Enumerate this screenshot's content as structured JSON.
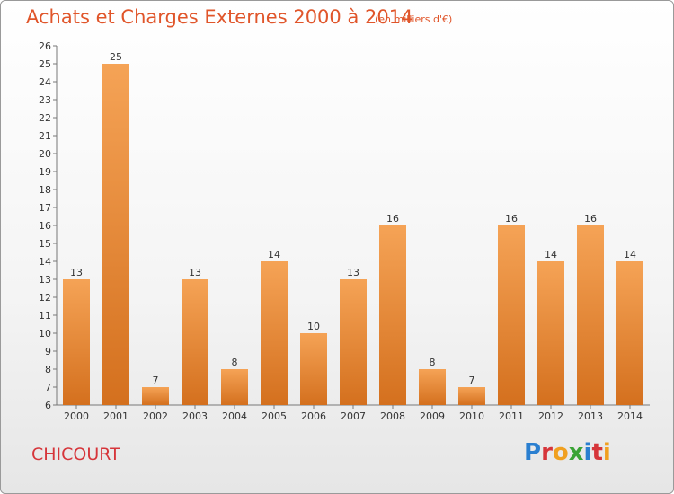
{
  "header": {
    "title": "Achats et Charges Externes 2000 à 2014",
    "unit": "(en milliers d'€)"
  },
  "footer": {
    "city": "CHICOURT",
    "logo": "Proxiti",
    "logo_colors": [
      "#2a7fd0",
      "#d6353a",
      "#f0a020",
      "#3aa335",
      "#2a7fd0",
      "#d6353a",
      "#f0a020"
    ]
  },
  "colors": {
    "bar_light": "#f5a356",
    "bar_dark": "#d4701e",
    "title": "#e0552a",
    "city": "#d6353a"
  },
  "chart_data": {
    "type": "bar",
    "title": "Achats et Charges Externes 2000 à 2014",
    "subtitle": "(en milliers d'€)",
    "categories": [
      "2000",
      "2001",
      "2002",
      "2003",
      "2004",
      "2005",
      "2006",
      "2007",
      "2008",
      "2009",
      "2010",
      "2011",
      "2012",
      "2013",
      "2014"
    ],
    "values": [
      13,
      25,
      7,
      13,
      8,
      14,
      10,
      13,
      16,
      8,
      7,
      16,
      14,
      16,
      14
    ],
    "ylim": [
      6,
      26
    ],
    "yticks": [
      6,
      7,
      8,
      9,
      10,
      11,
      12,
      13,
      14,
      15,
      16,
      17,
      18,
      19,
      20,
      21,
      22,
      23,
      24,
      25,
      26
    ],
    "grid": false,
    "legend": "none"
  }
}
